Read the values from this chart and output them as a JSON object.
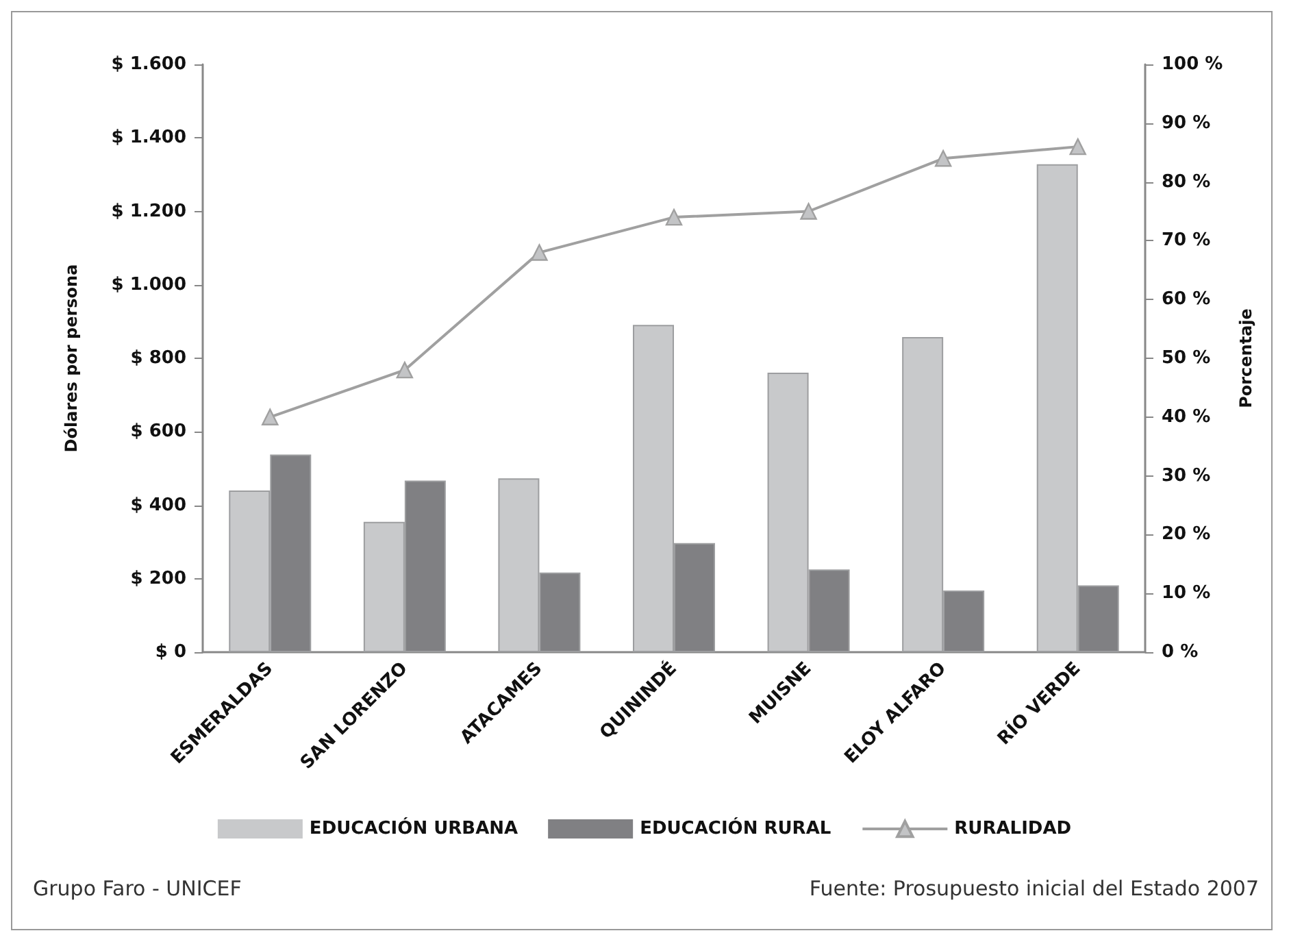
{
  "chart_data": {
    "type": "bar",
    "ylabel": "Dólares por persona",
    "y2label": "Porcentaje",
    "categories": [
      "ESMERALDAS",
      "SAN LORENZO",
      "ATACAMES",
      "QUININDÉ",
      "MUISNE",
      "ELOY ALFARO",
      "RÍO VERDE"
    ],
    "series": [
      {
        "name": "EDUCACIÓN URBANA",
        "color": "#c8c9cb",
        "values": [
          440,
          355,
          473,
          891,
          761,
          858,
          1328
        ]
      },
      {
        "name": "EDUCACIÓN RURAL",
        "color": "#808083",
        "values": [
          538,
          467,
          217,
          297,
          225,
          168,
          182
        ]
      },
      {
        "name": "RURALIDAD",
        "type": "line",
        "axis": "y2",
        "color": "#a0a0a0",
        "marker": "triangle",
        "values": [
          40,
          48,
          68,
          74,
          75,
          84,
          86
        ]
      }
    ],
    "ylim": [
      0,
      1600
    ],
    "yticks": [
      {
        "value": 0,
        "label": "$ 0"
      },
      {
        "value": 200,
        "label": "$ 200"
      },
      {
        "value": 400,
        "label": "$ 400"
      },
      {
        "value": 600,
        "label": "$ 600"
      },
      {
        "value": 800,
        "label": "$ 800"
      },
      {
        "value": 1000,
        "label": "$ 1.000"
      },
      {
        "value": 1200,
        "label": "$ 1.200"
      },
      {
        "value": 1400,
        "label": "$ 1.400"
      },
      {
        "value": 1600,
        "label": "$ 1.600"
      }
    ],
    "y2lim": [
      0,
      100
    ],
    "y2ticks": [
      {
        "value": 0,
        "label": "0 %"
      },
      {
        "value": 10,
        "label": "10 %"
      },
      {
        "value": 20,
        "label": "20 %"
      },
      {
        "value": 30,
        "label": "30 %"
      },
      {
        "value": 40,
        "label": "40 %"
      },
      {
        "value": 50,
        "label": "50 %"
      },
      {
        "value": 60,
        "label": "60 %"
      },
      {
        "value": 70,
        "label": "70 %"
      },
      {
        "value": 80,
        "label": "80 %"
      },
      {
        "value": 90,
        "label": "90 %"
      },
      {
        "value": 100,
        "label": "100 %"
      }
    ],
    "grid": false,
    "legend": "bottom",
    "annotations": [
      "Grupo Faro - UNICEF",
      "Fuente: Prosupuesto inicial del Estado 2007"
    ]
  }
}
